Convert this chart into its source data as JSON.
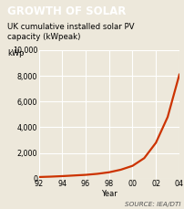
{
  "title": "GROWTH OF SOLAR",
  "subtitle": "UK cumulative installed solar PV\ncapacity (kWpeak)",
  "ylabel": "kWp",
  "xlabel": "Year",
  "source": "SOURCE: IEA/DTI",
  "years": [
    1992,
    1993,
    1994,
    1995,
    1996,
    1997,
    1998,
    1999,
    2000,
    2001,
    2002,
    2003,
    2004
  ],
  "values": [
    130,
    160,
    200,
    250,
    300,
    380,
    500,
    700,
    1000,
    1600,
    2800,
    4800,
    8100
  ],
  "line_color": "#cc3300",
  "bg_color": "#ede8db",
  "title_bg": "#3d6b7a",
  "title_color": "#ffffff",
  "grid_color": "#ffffff",
  "ylim": [
    0,
    10000
  ],
  "yticks": [
    0,
    2000,
    4000,
    6000,
    8000,
    10000
  ],
  "ytick_labels": [
    "0",
    "2,000",
    "4,000",
    "6,000",
    "8,000",
    "10,000"
  ],
  "xtick_years": [
    1992,
    1994,
    1996,
    1998,
    2000,
    2002,
    2004
  ],
  "xtick_labels": [
    "92",
    "94",
    "96",
    "98",
    "00",
    "02",
    "04"
  ],
  "xlim": [
    1992,
    2004
  ],
  "title_fontsize": 8.5,
  "subtitle_fontsize": 6.2,
  "label_fontsize": 6,
  "tick_fontsize": 5.8,
  "source_fontsize": 5.2,
  "line_width": 1.6
}
